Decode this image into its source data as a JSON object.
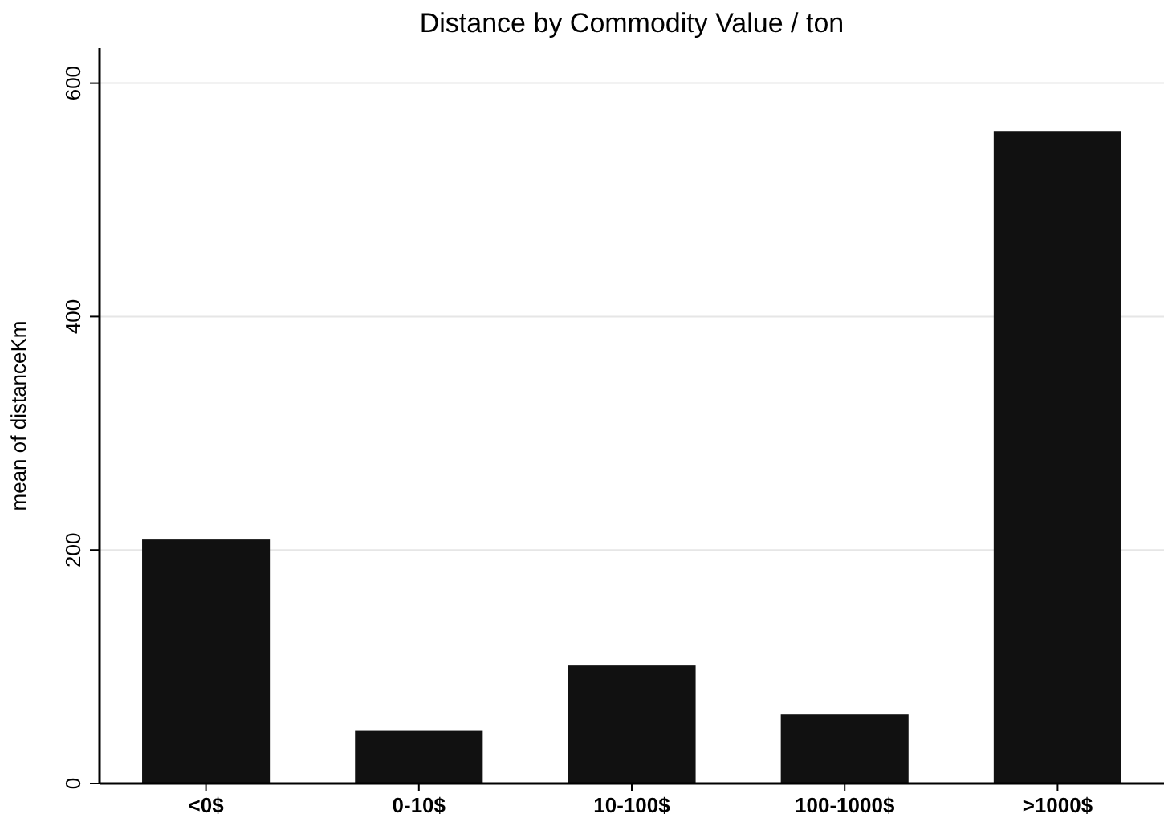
{
  "chart_data": {
    "type": "bar",
    "title": "Distance by Commodity Value / ton",
    "ylabel": "mean of distanceKm",
    "categories": [
      "<0$",
      "0-10$",
      "10-100$",
      "100-1000$",
      ">1000$"
    ],
    "values": [
      209,
      45,
      101,
      59,
      559
    ],
    "color": "#111111",
    "ylim": [
      0,
      630
    ],
    "yticks": [
      0,
      200,
      400,
      600
    ],
    "grid": "y"
  }
}
